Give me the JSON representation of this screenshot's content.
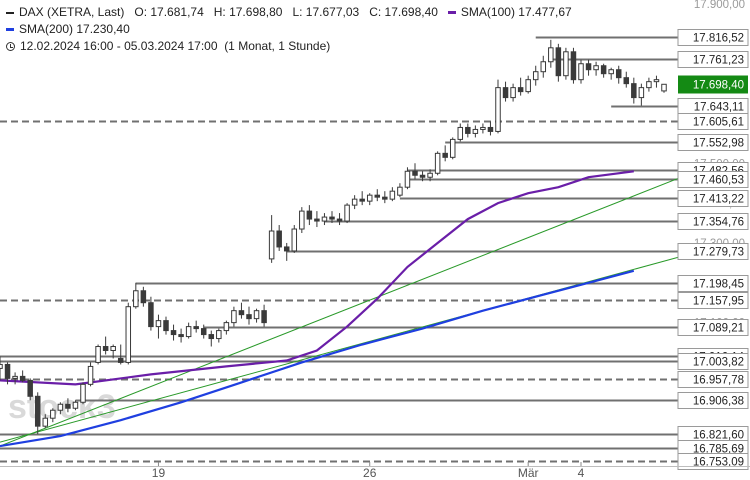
{
  "legend": {
    "instrument": "DAX (XETRA, Last)",
    "open": "O: 17.681,74",
    "high": "H: 17.698,80",
    "low": "L: 17.677,03",
    "close": "C: 17.698,40",
    "sma100_label": "SMA(100)",
    "sma100_value": "17.477,67",
    "sma200_label": "SMA(200)",
    "sma200_value": "17.230,40",
    "range": "12.02.2024 16:00 - 05.03.2024 17:00",
    "interval": "(1 Monat, 1 Stunde)"
  },
  "watermark": "stock3",
  "colors": {
    "sma100": "#6a1ea8",
    "sma200": "#1f3fe0",
    "trend": "#2a9a2a",
    "candle_up": "#ffffff",
    "candle_down": "#3a3a3a",
    "current_price_bg": "#148a14",
    "level_line": "#707070"
  },
  "chart_data": {
    "type": "candlestick",
    "xlabels": [
      "19",
      "26",
      "Mär",
      "4"
    ],
    "x_tick_positions": [
      21,
      49,
      70,
      77
    ],
    "x_domain": [
      0,
      88
    ],
    "ylim": [
      16740,
      17905
    ],
    "ytick_labels_faded": [
      "17.900,00",
      "17.500,00",
      "17.400,00",
      "17.300,00",
      "17.100,00",
      "17.000,00",
      "16.800,00"
    ],
    "ytick_values_faded": [
      17900,
      17500,
      17400,
      17300,
      17100,
      17000,
      16800
    ],
    "current_price": {
      "value": 17698.4,
      "label": "17.698,40"
    },
    "levels": [
      {
        "value": 17816.52,
        "label": "17.816,52",
        "style": "solid",
        "x_start": 71
      },
      {
        "value": 17761.23,
        "label": "17.761,23",
        "style": "solid",
        "x_start": 73
      },
      {
        "value": 17643.11,
        "label": "17.643,11",
        "style": "solid",
        "x_start": 81
      },
      {
        "value": 17605.61,
        "label": "17.605,61",
        "style": "dashed",
        "x_start": 0
      },
      {
        "value": 17552.98,
        "label": "17.552,98",
        "style": "solid",
        "x_start": 59
      },
      {
        "value": 17482.56,
        "label": "17.482,56",
        "style": "solid",
        "x_start": 54
      },
      {
        "value": 17460.53,
        "label": "17.460,53",
        "style": "solid",
        "x_start": 54
      },
      {
        "value": 17413.22,
        "label": "17.413,22",
        "style": "solid",
        "x_start": 53
      },
      {
        "value": 17354.76,
        "label": "17.354,76",
        "style": "solid",
        "x_start": 43
      },
      {
        "value": 17279.73,
        "label": "17.279,73",
        "style": "solid",
        "x_start": 38
      },
      {
        "value": 17198.45,
        "label": "17.198,45",
        "style": "solid",
        "x_start": 18
      },
      {
        "value": 17157.95,
        "label": "17.157,95",
        "style": "dashed",
        "x_start": 0
      },
      {
        "value": 17089.21,
        "label": "17.089,21",
        "style": "solid",
        "x_start": 27
      },
      {
        "value": 17016.14,
        "label": "17.016,14",
        "style": "solid",
        "x_start": 0
      },
      {
        "value": 17003.82,
        "label": "17.003,82",
        "style": "solid",
        "x_start": 0
      },
      {
        "value": 16957.78,
        "label": "16.957,78",
        "style": "dashed",
        "x_start": 0
      },
      {
        "value": 16906.38,
        "label": "16.906,38",
        "style": "solid",
        "x_start": 10
      },
      {
        "value": 16821.6,
        "label": "16.821,60",
        "style": "solid",
        "x_start": 0
      },
      {
        "value": 16785.69,
        "label": "16.785,69",
        "style": "solid",
        "x_start": 0
      },
      {
        "value": 16753.09,
        "label": "16.753,09",
        "style": "dashed",
        "x_start": 0
      }
    ],
    "trendlines": [
      {
        "name": "",
        "points": [
          [
            0,
            16790
          ],
          [
            92,
            17478
          ]
        ]
      },
      {
        "name": "",
        "points": [
          [
            0,
            16800
          ],
          [
            92,
            17275
          ]
        ]
      }
    ],
    "series": [
      {
        "name": "SMA(100)",
        "points": [
          [
            0,
            16955
          ],
          [
            10,
            16945
          ],
          [
            20,
            16970
          ],
          [
            30,
            16990
          ],
          [
            38,
            17005
          ],
          [
            42,
            17030
          ],
          [
            46,
            17090
          ],
          [
            50,
            17160
          ],
          [
            54,
            17240
          ],
          [
            58,
            17300
          ],
          [
            62,
            17360
          ],
          [
            66,
            17400
          ],
          [
            70,
            17425
          ],
          [
            74,
            17440
          ],
          [
            78,
            17465
          ],
          [
            84,
            17480
          ]
        ]
      },
      {
        "name": "SMA(200)",
        "points": [
          [
            0,
            16790
          ],
          [
            8,
            16815
          ],
          [
            16,
            16855
          ],
          [
            24,
            16900
          ],
          [
            32,
            16950
          ],
          [
            40,
            17000
          ],
          [
            48,
            17045
          ],
          [
            56,
            17085
          ],
          [
            64,
            17130
          ],
          [
            72,
            17170
          ],
          [
            78,
            17200
          ],
          [
            84,
            17230
          ]
        ]
      }
    ],
    "candles": [
      [
        0,
        16985,
        17015,
        16955,
        16995
      ],
      [
        1,
        16995,
        17000,
        16945,
        16960
      ],
      [
        2,
        16960,
        16975,
        16945,
        16965
      ],
      [
        3,
        16965,
        16980,
        16950,
        16955
      ],
      [
        4,
        16955,
        16960,
        16905,
        16915
      ],
      [
        5,
        16915,
        16925,
        16820,
        16840
      ],
      [
        6,
        16840,
        16870,
        16835,
        16860
      ],
      [
        7,
        16860,
        16885,
        16850,
        16880
      ],
      [
        8,
        16880,
        16900,
        16870,
        16895
      ],
      [
        9,
        16895,
        16910,
        16875,
        16885
      ],
      [
        10,
        16885,
        16905,
        16880,
        16900
      ],
      [
        11,
        16900,
        16950,
        16895,
        16945
      ],
      [
        12,
        16945,
        17000,
        16940,
        16990
      ],
      [
        13,
        17000,
        17045,
        16995,
        17040
      ],
      [
        14,
        17040,
        17065,
        17020,
        17030
      ],
      [
        15,
        17030,
        17045,
        17010,
        17040
      ],
      [
        16,
        17010,
        17045,
        16995,
        17000
      ],
      [
        17,
        17000,
        17150,
        16995,
        17140
      ],
      [
        18,
        17140,
        17200,
        17135,
        17180
      ],
      [
        19,
        17180,
        17190,
        17140,
        17150
      ],
      [
        20,
        17150,
        17165,
        17080,
        17090
      ],
      [
        21,
        17090,
        17120,
        17060,
        17105
      ],
      [
        22,
        17105,
        17115,
        17070,
        17080
      ],
      [
        23,
        17080,
        17095,
        17055,
        17070
      ],
      [
        24,
        17070,
        17085,
        17050,
        17065
      ],
      [
        25,
        17065,
        17100,
        17060,
        17090
      ],
      [
        26,
        17090,
        17105,
        17075,
        17085
      ],
      [
        27,
        17085,
        17095,
        17060,
        17070
      ],
      [
        28,
        17070,
        17080,
        17040,
        17060
      ],
      [
        29,
        17060,
        17085,
        17050,
        17080
      ],
      [
        30,
        17080,
        17105,
        17070,
        17100
      ],
      [
        31,
        17100,
        17140,
        17090,
        17130
      ],
      [
        32,
        17130,
        17150,
        17110,
        17120
      ],
      [
        33,
        17120,
        17140,
        17095,
        17110
      ],
      [
        34,
        17110,
        17135,
        17100,
        17130
      ],
      [
        35,
        17130,
        17145,
        17090,
        17100
      ],
      [
        36,
        17260,
        17370,
        17250,
        17330
      ],
      [
        37,
        17330,
        17345,
        17280,
        17290
      ],
      [
        38,
        17290,
        17300,
        17255,
        17280
      ],
      [
        39,
        17280,
        17345,
        17275,
        17335
      ],
      [
        40,
        17335,
        17390,
        17325,
        17380
      ],
      [
        41,
        17380,
        17395,
        17345,
        17360
      ],
      [
        42,
        17360,
        17380,
        17340,
        17355
      ],
      [
        43,
        17355,
        17375,
        17345,
        17365
      ],
      [
        44,
        17365,
        17380,
        17350,
        17360
      ],
      [
        45,
        17360,
        17375,
        17345,
        17355
      ],
      [
        46,
        17355,
        17400,
        17350,
        17395
      ],
      [
        47,
        17395,
        17420,
        17385,
        17410
      ],
      [
        48,
        17410,
        17430,
        17395,
        17405
      ],
      [
        49,
        17405,
        17425,
        17395,
        17420
      ],
      [
        50,
        17420,
        17435,
        17405,
        17415
      ],
      [
        51,
        17415,
        17430,
        17400,
        17410
      ],
      [
        52,
        17410,
        17440,
        17405,
        17430
      ],
      [
        53,
        17420,
        17450,
        17415,
        17440
      ],
      [
        54,
        17440,
        17490,
        17435,
        17480
      ],
      [
        55,
        17480,
        17500,
        17460,
        17470
      ],
      [
        56,
        17470,
        17480,
        17455,
        17465
      ],
      [
        57,
        17465,
        17485,
        17455,
        17475
      ],
      [
        58,
        17475,
        17530,
        17470,
        17525
      ],
      [
        59,
        17525,
        17545,
        17505,
        17515
      ],
      [
        60,
        17515,
        17565,
        17510,
        17560
      ],
      [
        61,
        17560,
        17600,
        17555,
        17590
      ],
      [
        62,
        17590,
        17600,
        17565,
        17575
      ],
      [
        63,
        17575,
        17595,
        17565,
        17585
      ],
      [
        64,
        17585,
        17600,
        17575,
        17590
      ],
      [
        65,
        17590,
        17605,
        17570,
        17580
      ],
      [
        66,
        17580,
        17710,
        17575,
        17690
      ],
      [
        67,
        17690,
        17705,
        17655,
        17665
      ],
      [
        68,
        17665,
        17700,
        17655,
        17690
      ],
      [
        69,
        17690,
        17715,
        17670,
        17680
      ],
      [
        70,
        17680,
        17720,
        17675,
        17710
      ],
      [
        71,
        17710,
        17745,
        17695,
        17730
      ],
      [
        72,
        17730,
        17770,
        17715,
        17755
      ],
      [
        73,
        17755,
        17810,
        17740,
        17790
      ],
      [
        74,
        17790,
        17800,
        17705,
        17720
      ],
      [
        75,
        17720,
        17790,
        17710,
        17780
      ],
      [
        76,
        17780,
        17790,
        17700,
        17710
      ],
      [
        77,
        17710,
        17760,
        17700,
        17750
      ],
      [
        78,
        17750,
        17760,
        17720,
        17735
      ],
      [
        79,
        17735,
        17755,
        17720,
        17745
      ],
      [
        80,
        17745,
        17750,
        17715,
        17725
      ],
      [
        81,
        17725,
        17740,
        17710,
        17735
      ],
      [
        82,
        17735,
        17745,
        17700,
        17715
      ],
      [
        83,
        17715,
        17730,
        17690,
        17700
      ],
      [
        84,
        17700,
        17715,
        17650,
        17665
      ],
      [
        85,
        17665,
        17700,
        17645,
        17690
      ],
      [
        86,
        17690,
        17715,
        17680,
        17705
      ],
      [
        87,
        17705,
        17720,
        17690,
        17710
      ],
      [
        88,
        17681.74,
        17698.8,
        17677.03,
        17698.4
      ]
    ]
  }
}
